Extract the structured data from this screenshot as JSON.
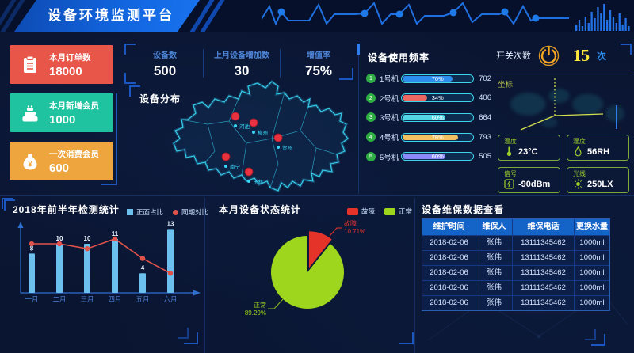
{
  "header": {
    "title": "设备环境监测平台"
  },
  "cards": [
    {
      "label": "本月订单数",
      "value": "18000",
      "color": "#e8564a",
      "icon": "clipboard-icon"
    },
    {
      "label": "本月新增会员",
      "value": "1000",
      "color": "#1fc3a0",
      "icon": "cake-icon"
    },
    {
      "label": "一次消费会员",
      "value": "600",
      "color": "#efa53d",
      "icon": "moneybag-icon"
    }
  ],
  "stats": [
    {
      "label": "设备数",
      "value": "500"
    },
    {
      "label": "上月设备增加数",
      "value": "30"
    },
    {
      "label": "增值率",
      "value": "75%"
    }
  ],
  "panels": {
    "distribution": "设备分布",
    "usage": "设备使用频率",
    "switch_label": "开关次数",
    "switch_value": "15",
    "switch_unit": "次",
    "coord": "坐标",
    "inspection": "2018年前半年检测统计",
    "status": "本月设备状态统计",
    "maintenance": "设备维保数据查看"
  },
  "sensors": [
    {
      "label": "温度",
      "value": "23°C",
      "icon": "thermometer-icon"
    },
    {
      "label": "湿度",
      "value": "56RH",
      "icon": "water-drop-icon"
    },
    {
      "label": "信号",
      "value": "-90dBm",
      "icon": "signal-icon"
    },
    {
      "label": "光线",
      "value": "250LX",
      "icon": "sun-icon"
    }
  ],
  "map_cities": [
    "河池",
    "柳州",
    "贺州",
    "南宁",
    "玉林"
  ],
  "chart_data": [
    {
      "id": "usage",
      "type": "hbar",
      "title": "设备使用频率",
      "items": [
        {
          "label": "1号机",
          "percent": 70,
          "value": 702,
          "color": "#2f8ded"
        },
        {
          "label": "2号机",
          "percent": 34,
          "value": 406,
          "color": "#ee6661"
        },
        {
          "label": "3号机",
          "percent": 60,
          "value": 664,
          "color": "#52d5e5"
        },
        {
          "label": "4号机",
          "percent": 78,
          "value": 793,
          "color": "#f2c260"
        },
        {
          "label": "5号机",
          "percent": 60,
          "value": 505,
          "color": "#8b88f8"
        }
      ]
    },
    {
      "id": "inspection",
      "type": "bar",
      "title": "2018年前半年检测统计",
      "categories": [
        "一月",
        "二月",
        "三月",
        "四月",
        "五月",
        "六月"
      ],
      "series": [
        {
          "name": "正面占比",
          "type": "bar",
          "values": [
            8,
            10,
            10,
            11,
            4,
            13
          ],
          "color": "#6cc0ee"
        },
        {
          "name": "同期对比",
          "type": "line",
          "values": [
            10,
            10,
            9,
            11,
            7,
            4
          ],
          "color": "#e1534a"
        }
      ],
      "ylim": [
        0,
        14
      ],
      "grid": false,
      "legend_position": "top-right"
    },
    {
      "id": "status",
      "type": "pie",
      "title": "本月设备状态统计",
      "slices": [
        {
          "name": "故障",
          "percent": 10.71,
          "color": "#e63329"
        },
        {
          "name": "正常",
          "percent": 89.29,
          "color": "#9ed61d"
        }
      ],
      "legend_position": "top-right"
    }
  ],
  "table": {
    "headers": [
      "维护时间",
      "维保人",
      "维保电话",
      "更换水量"
    ],
    "rows": [
      [
        "2018-02-06",
        "张伟",
        "13111345462",
        "1000ml"
      ],
      [
        "2018-02-06",
        "张伟",
        "13111345462",
        "1000ml"
      ],
      [
        "2018-02-06",
        "张伟",
        "13111345462",
        "1000ml"
      ],
      [
        "2018-02-06",
        "张伟",
        "13111345462",
        "1000ml"
      ],
      [
        "2018-02-06",
        "张伟",
        "13111345462",
        "1000ml"
      ]
    ]
  }
}
